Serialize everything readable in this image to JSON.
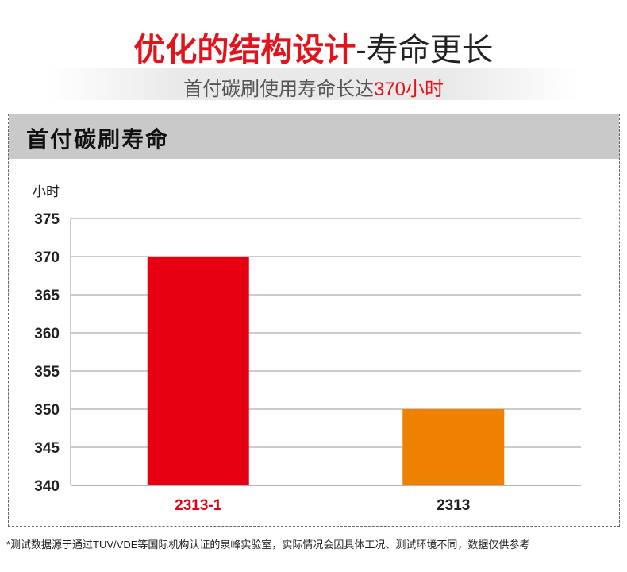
{
  "header": {
    "title_main": "优化的结构设计",
    "title_suffix": "-寿命更长",
    "subtitle_prefix": "首付碳刷使用寿命长达",
    "subtitle_highlight": "370小时"
  },
  "panel": {
    "title": "首付碳刷寿命"
  },
  "chart_data": {
    "type": "bar",
    "title": "首付碳刷寿命",
    "ylabel": "小时",
    "xlabel": "",
    "ylim": [
      340,
      375
    ],
    "yticks": [
      340,
      345,
      350,
      355,
      360,
      365,
      370,
      375
    ],
    "categories": [
      "2313-1",
      "2313"
    ],
    "values": [
      370,
      350
    ],
    "bar_colors": [
      "#e60012",
      "#f08000"
    ],
    "category_label_colors": [
      "#e60012",
      "#222222"
    ],
    "grid": true
  },
  "footnote": "*测试数据源于通过TUV/VDE等国际机构认证的泉峰实验室，实际情况会因具体工况、测试环境不同，数据仅供参考"
}
